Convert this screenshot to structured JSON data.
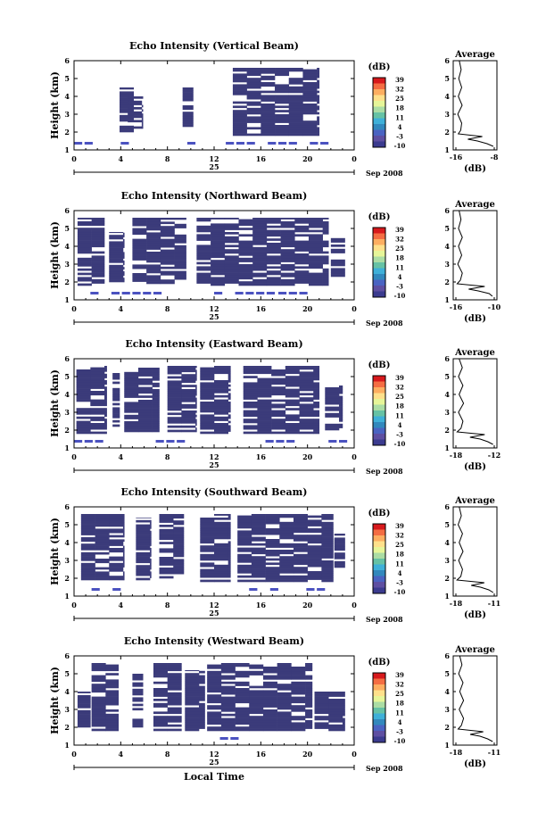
{
  "figure": {
    "xlabel": "Local Time",
    "date_label": "Sep 2008",
    "day_label": "25",
    "colorbar_unit": "(dB)",
    "colorbar_ticks": [
      "39",
      "32",
      "25",
      "18",
      "11",
      "4",
      "-3",
      "-10"
    ],
    "colorbar_colors": [
      "#d7191c",
      "#f46d43",
      "#fdae61",
      "#fee08b",
      "#e6f598",
      "#abdda4",
      "#66c2a5",
      "#3fb0d8",
      "#3288bd",
      "#4a63c2",
      "#5e4fa2",
      "#3b3b8f"
    ],
    "echo_color": "#3b3b7a",
    "low_color": "#4b52c0",
    "avg_title": "Average",
    "avg_xlabel": "(dB)"
  },
  "chart_data": [
    {
      "type": "heatmap",
      "title": "Echo Intensity (Vertical Beam)",
      "ylabel": "Height (km)",
      "x_ticks": [
        "0",
        "4",
        "8",
        "12",
        "16",
        "20",
        "0"
      ],
      "y_ticks": [
        "1",
        "2",
        "3",
        "4",
        "5",
        "6"
      ],
      "xlim": [
        0,
        24
      ],
      "ylim": [
        1,
        6
      ],
      "blocks": [
        [
          3.9,
          5.1,
          2.0,
          4.5
        ],
        [
          4.6,
          5.9,
          2.2,
          4.0
        ],
        [
          9.3,
          10.2,
          2.3,
          4.5
        ],
        [
          13.6,
          21.0,
          1.8,
          5.6
        ]
      ],
      "low_band": [
        [
          0.0,
          1.0
        ],
        [
          4.0,
          5.2
        ],
        [
          8.8,
          10.5
        ],
        [
          13.0,
          22.5
        ]
      ],
      "avg": {
        "xlim": [
          -16,
          -8
        ],
        "x_ticks": [
          "-16",
          "-8"
        ],
        "y_ticks": [
          "1",
          "2",
          "3",
          "4",
          "5",
          "6"
        ],
        "heights": [
          1.2,
          1.35,
          1.5,
          1.6,
          1.75,
          1.9,
          2.1,
          2.5,
          3.0,
          3.5,
          4.0,
          4.5,
          5.0,
          5.5,
          6.0
        ],
        "values": [
          -8.2,
          -9.5,
          -11.5,
          -13.5,
          -10.5,
          -15.5,
          -15.0,
          -14.8,
          -15.6,
          -14.7,
          -15.5,
          -14.8,
          -15.4,
          -14.9,
          -15.3
        ]
      }
    },
    {
      "type": "heatmap",
      "title": "Echo Intensity (Northward Beam)",
      "ylabel": "Height (km)",
      "x_ticks": [
        "0",
        "4",
        "8",
        "12",
        "16",
        "20",
        "0"
      ],
      "y_ticks": [
        "1",
        "2",
        "3",
        "4",
        "5",
        "6"
      ],
      "xlim": [
        0,
        24
      ],
      "ylim": [
        1,
        6
      ],
      "blocks": [
        [
          0.3,
          2.6,
          1.8,
          5.6
        ],
        [
          3.0,
          4.3,
          2.0,
          4.8
        ],
        [
          5.0,
          9.6,
          1.9,
          5.6
        ],
        [
          10.5,
          21.8,
          1.8,
          5.6
        ],
        [
          22.0,
          23.2,
          2.3,
          4.5
        ]
      ],
      "low_band": [
        [
          0.5,
          8.5
        ],
        [
          12.0,
          17.0
        ],
        [
          17.5,
          19.8
        ]
      ],
      "avg": {
        "xlim": [
          -16,
          -10
        ],
        "x_ticks": [
          "-16",
          "-10"
        ],
        "y_ticks": [
          "1",
          "2",
          "3",
          "4",
          "5",
          "6"
        ],
        "heights": [
          1.2,
          1.35,
          1.5,
          1.6,
          1.75,
          1.9,
          2.1,
          2.5,
          3.0,
          3.5,
          4.0,
          4.5,
          5.0,
          5.5,
          6.0
        ],
        "values": [
          -10.3,
          -10.8,
          -12.5,
          -14.0,
          -11.5,
          -15.8,
          -15.3,
          -15.0,
          -15.7,
          -15.1,
          -15.6,
          -15.0,
          -15.6,
          -15.2,
          -15.5
        ]
      }
    },
    {
      "type": "heatmap",
      "title": "Echo Intensity (Eastward Beam)",
      "ylabel": "Height (km)",
      "x_ticks": [
        "0",
        "4",
        "8",
        "12",
        "16",
        "20",
        "0"
      ],
      "y_ticks": [
        "1",
        "2",
        "3",
        "4",
        "5",
        "6"
      ],
      "xlim": [
        0,
        24
      ],
      "ylim": [
        1,
        6
      ],
      "blocks": [
        [
          0.2,
          2.8,
          1.8,
          5.6
        ],
        [
          3.3,
          3.9,
          2.2,
          5.2
        ],
        [
          4.3,
          7.3,
          1.9,
          5.5
        ],
        [
          8.0,
          10.5,
          1.9,
          5.6
        ],
        [
          10.8,
          13.4,
          1.8,
          5.6
        ],
        [
          14.5,
          21.0,
          1.8,
          5.6
        ],
        [
          21.5,
          23.0,
          2.0,
          4.5
        ]
      ],
      "low_band": [
        [
          0.0,
          2.5
        ],
        [
          7.0,
          9.0
        ],
        [
          15.5,
          19.0
        ],
        [
          21.8,
          23.5
        ]
      ],
      "avg": {
        "xlim": [
          -18,
          -12
        ],
        "x_ticks": [
          "-18",
          "-12"
        ],
        "y_ticks": [
          "1",
          "2",
          "3",
          "4",
          "5",
          "6"
        ],
        "heights": [
          1.2,
          1.35,
          1.5,
          1.6,
          1.75,
          1.9,
          2.1,
          2.5,
          3.0,
          3.5,
          4.0,
          4.5,
          5.0,
          5.5,
          6.0
        ],
        "values": [
          -12.2,
          -13.0,
          -14.2,
          -15.8,
          -13.5,
          -17.8,
          -17.2,
          -16.9,
          -17.6,
          -16.8,
          -17.5,
          -16.9,
          -17.6,
          -17.0,
          -17.5
        ]
      }
    },
    {
      "type": "heatmap",
      "title": "Echo Intensity (Southward Beam)",
      "ylabel": "Height (km)",
      "x_ticks": [
        "0",
        "4",
        "8",
        "12",
        "16",
        "20",
        "0"
      ],
      "y_ticks": [
        "1",
        "2",
        "3",
        "4",
        "5",
        "6"
      ],
      "xlim": [
        0,
        24
      ],
      "ylim": [
        1,
        6
      ],
      "blocks": [
        [
          0.6,
          4.3,
          1.9,
          5.6
        ],
        [
          5.3,
          6.6,
          1.9,
          5.4
        ],
        [
          7.3,
          9.4,
          2.0,
          5.6
        ],
        [
          10.8,
          13.4,
          1.8,
          5.6
        ],
        [
          14.0,
          22.2,
          1.8,
          5.6
        ],
        [
          22.3,
          23.2,
          2.6,
          4.5
        ]
      ],
      "low_band": [
        [
          1.5,
          4.0
        ],
        [
          15.0,
          18.5
        ],
        [
          19.0,
          21.0
        ]
      ],
      "avg": {
        "xlim": [
          -18,
          -11
        ],
        "x_ticks": [
          "-18",
          "-11"
        ],
        "y_ticks": [
          "1",
          "2",
          "3",
          "4",
          "5",
          "6"
        ],
        "heights": [
          1.2,
          1.35,
          1.5,
          1.6,
          1.75,
          1.9,
          2.1,
          2.5,
          3.0,
          3.5,
          4.0,
          4.5,
          5.0,
          5.5,
          6.0
        ],
        "values": [
          -11.2,
          -12.0,
          -13.5,
          -15.2,
          -12.8,
          -17.8,
          -17.1,
          -16.8,
          -17.5,
          -16.7,
          -17.4,
          -16.8,
          -17.6,
          -17.0,
          -17.4
        ]
      }
    },
    {
      "type": "heatmap",
      "title": "Echo Intensity (Westward Beam)",
      "ylabel": "Height (km)",
      "x_ticks": [
        "0",
        "4",
        "8",
        "12",
        "16",
        "20",
        "0"
      ],
      "y_ticks": [
        "1",
        "2",
        "3",
        "4",
        "5",
        "6"
      ],
      "xlim": [
        0,
        24
      ],
      "ylim": [
        1,
        6
      ],
      "blocks": [
        [
          0.3,
          1.4,
          2.0,
          4.0
        ],
        [
          1.5,
          3.8,
          1.8,
          5.6
        ],
        [
          5.0,
          5.9,
          2.0,
          5.0
        ],
        [
          6.8,
          9.2,
          1.8,
          5.6
        ],
        [
          9.5,
          11.2,
          1.8,
          5.2
        ],
        [
          11.4,
          20.4,
          1.8,
          5.6
        ],
        [
          20.6,
          23.2,
          1.8,
          4.0
        ]
      ],
      "low_band": [
        [
          8.5,
          9.5
        ],
        [
          12.5,
          13.5
        ],
        [
          19.5,
          20.5
        ]
      ],
      "avg": {
        "xlim": [
          -18,
          -11
        ],
        "x_ticks": [
          "-18",
          "-11"
        ],
        "y_ticks": [
          "1",
          "2",
          "3",
          "4",
          "5",
          "6"
        ],
        "heights": [
          1.2,
          1.35,
          1.5,
          1.6,
          1.75,
          1.9,
          2.1,
          2.5,
          3.0,
          3.5,
          4.0,
          4.5,
          5.0,
          5.5,
          6.0
        ],
        "values": [
          -11.3,
          -12.2,
          -13.6,
          -15.4,
          -13.0,
          -17.6,
          -17.0,
          -16.6,
          -17.4,
          -16.6,
          -17.3,
          -16.7,
          -17.5,
          -16.9,
          -17.3
        ]
      }
    }
  ]
}
